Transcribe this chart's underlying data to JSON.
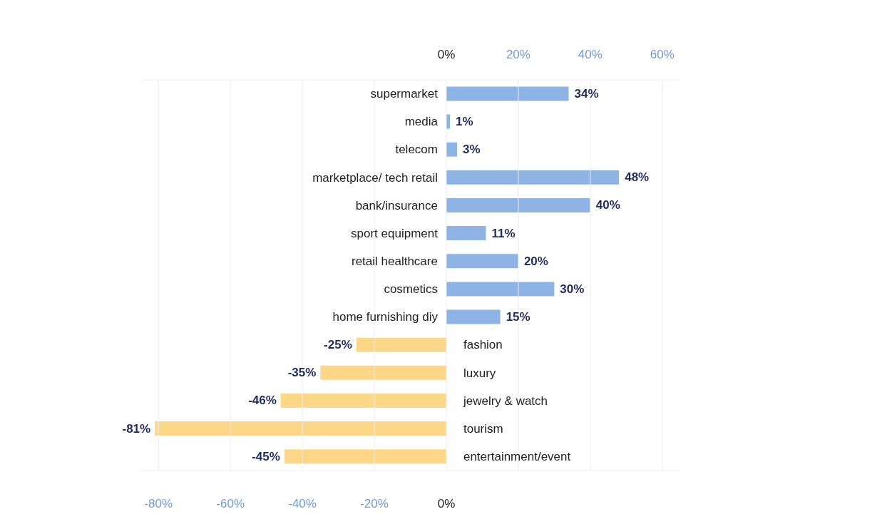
{
  "chart_data": {
    "type": "bar",
    "orientation": "horizontal",
    "categories": [
      "supermarket",
      "media",
      "telecom",
      "marketplace/ tech retail",
      "bank/insurance",
      "sport equipment",
      "retail healthcare",
      "cosmetics",
      "home furnishing diy",
      "fashion",
      "luxury",
      "jewelry & watch",
      "tourism",
      "entertainment/event"
    ],
    "values": [
      34,
      1,
      3,
      48,
      40,
      11,
      20,
      30,
      15,
      -25,
      -35,
      -46,
      -81,
      -45
    ],
    "colors": [
      "#8eb4e5",
      "#8eb4e5",
      "#8eb4e5",
      "#8eb4e5",
      "#8eb4e5",
      "#8eb4e5",
      "#8eb4e5",
      "#8eb4e5",
      "#8eb4e5",
      "#fbd787",
      "#fbd787",
      "#fbd787",
      "#fbd787",
      "#fbd787"
    ],
    "value_labels": [
      "34%",
      "1%",
      "3%",
      "48%",
      "40%",
      "11%",
      "20%",
      "30%",
      "15%",
      "-25%",
      "-35%",
      "-46%",
      "-81%",
      "-45%"
    ],
    "xlim": [
      -85,
      65
    ],
    "xticks": [
      {
        "value": -80,
        "label": "-80%"
      },
      {
        "value": -60,
        "label": "-60%"
      },
      {
        "value": -40,
        "label": "-40%"
      },
      {
        "value": -20,
        "label": "-20%"
      },
      {
        "value": 0,
        "label": "0%"
      }
    ],
    "x2lim": [
      -85,
      65
    ],
    "x2ticks": [
      {
        "value": 0,
        "label": "0%"
      },
      {
        "value": 20,
        "label": "20%"
      },
      {
        "value": 40,
        "label": "40%"
      },
      {
        "value": 60,
        "label": "60%"
      }
    ],
    "grid": "x"
  }
}
